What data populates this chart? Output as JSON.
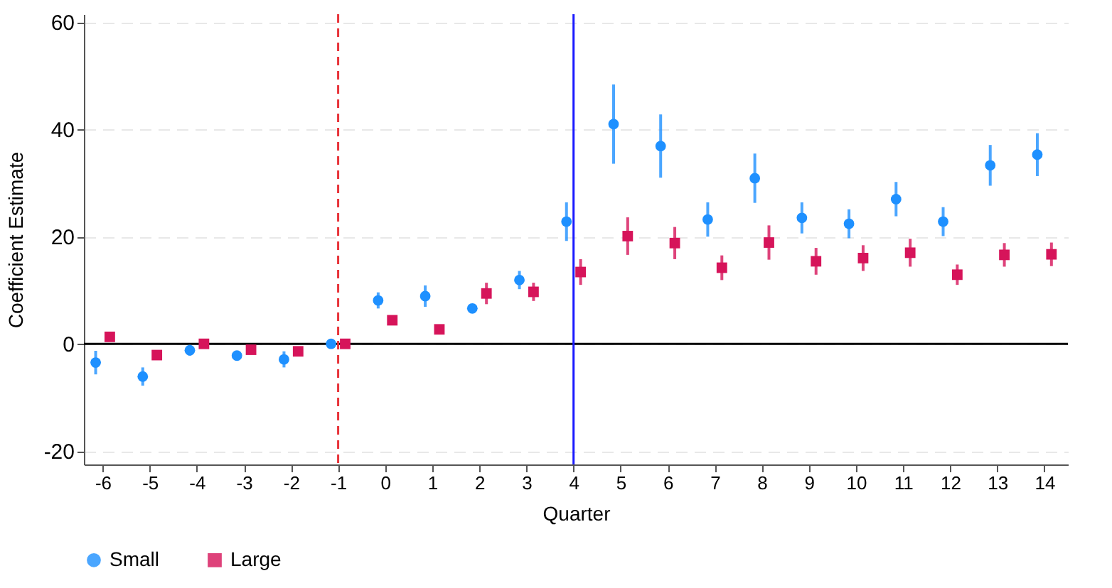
{
  "chart_data": {
    "type": "scatter",
    "xlabel": "Quarter",
    "ylabel": "Coefficient Estimate",
    "xlim": [
      -6.4,
      14.5
    ],
    "xticks": [
      -6,
      -5,
      -4,
      -3,
      -2,
      -1,
      0,
      1,
      2,
      3,
      4,
      5,
      6,
      7,
      8,
      9,
      10,
      11,
      12,
      13,
      14
    ],
    "ylim": [
      -22.5,
      61.5
    ],
    "yticks": [
      -20,
      0,
      20,
      40,
      60
    ],
    "grid": "y",
    "legend": "bottom",
    "series": [
      {
        "name": "Small",
        "color": "#1e90ff",
        "marker": "circle",
        "x": [
          -6.15,
          -5.15,
          -4.15,
          -3.15,
          -2.15,
          -1.15,
          -0.15,
          0.85,
          1.85,
          2.85,
          3.85,
          4.85,
          5.85,
          6.85,
          7.85,
          8.85,
          9.85,
          10.85,
          11.85,
          12.85,
          13.85
        ],
        "values": [
          -3.5,
          -6.1,
          -1.2,
          -2.2,
          -2.9,
          0,
          8.1,
          8.9,
          6.6,
          11.9,
          22.8,
          41.0,
          36.9,
          23.2,
          30.9,
          23.5,
          22.4,
          27.0,
          22.8,
          33.3,
          35.3
        ],
        "errors": [
          2.2,
          1.7,
          1.0,
          null,
          1.5,
          null,
          1.5,
          2.0,
          null,
          1.7,
          3.6,
          7.4,
          5.9,
          3.2,
          4.6,
          2.9,
          2.7,
          3.2,
          2.7,
          3.8,
          4.0
        ]
      },
      {
        "name": "Large",
        "color": "#d6145a",
        "marker": "square",
        "x": [
          -5.85,
          -4.85,
          -3.85,
          -2.85,
          -1.85,
          -0.85,
          0.15,
          1.15,
          2.15,
          3.15,
          4.15,
          5.15,
          6.15,
          7.15,
          8.15,
          9.15,
          10.15,
          11.15,
          12.15,
          13.15,
          14.15
        ],
        "values": [
          1.3,
          -2.1,
          0,
          -1.1,
          -1.4,
          0,
          4.4,
          2.7,
          9.4,
          9.7,
          13.4,
          20.1,
          18.8,
          14.2,
          18.9,
          15.4,
          16.0,
          17.0,
          12.9,
          16.6,
          16.7
        ],
        "errors": [
          null,
          null,
          null,
          null,
          null,
          null,
          null,
          null,
          2.0,
          1.7,
          2.4,
          3.5,
          3.0,
          2.3,
          3.2,
          2.5,
          2.4,
          2.6,
          1.9,
          2.2,
          2.2
        ]
      }
    ],
    "ref_lines": [
      {
        "axis": "y",
        "value": 0,
        "color": "#000000",
        "line_style": "solid"
      },
      {
        "axis": "x",
        "value": -1,
        "color": "#e8343a",
        "line_style": "dashed"
      },
      {
        "axis": "x",
        "value": 4,
        "color": "#1a1aff",
        "line_style": "solid"
      }
    ]
  }
}
